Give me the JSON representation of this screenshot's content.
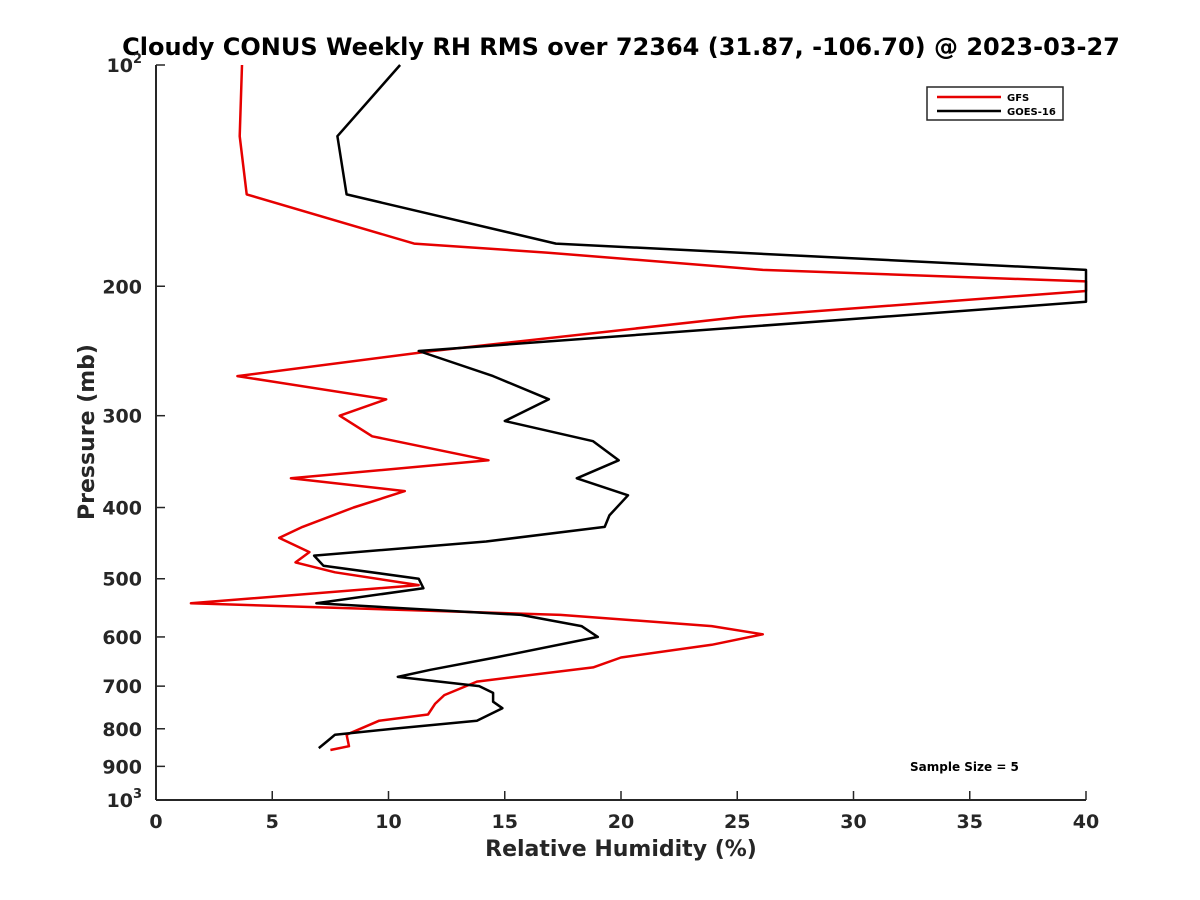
{
  "chart_data": {
    "type": "line",
    "title": "Cloudy CONUS Weekly RH RMS over 72364 (31.87, -106.70) @ 2023-03-27",
    "xlabel": "Relative Humidity (%)",
    "ylabel": "Pressure (mb)",
    "xlim": [
      0,
      40
    ],
    "ylim": [
      100,
      1000
    ],
    "y_scale": "log",
    "y_reversed": true,
    "x_ticks": [
      "0",
      "5",
      "10",
      "15",
      "20",
      "25",
      "30",
      "35",
      "40"
    ],
    "y_ticks": [
      {
        "value": 100,
        "base": "10",
        "exp": "2"
      },
      {
        "value": 200,
        "label": "200"
      },
      {
        "value": 300,
        "label": "300"
      },
      {
        "value": 400,
        "label": "400"
      },
      {
        "value": 500,
        "label": "500"
      },
      {
        "value": 600,
        "label": "600"
      },
      {
        "value": 700,
        "label": "700"
      },
      {
        "value": 800,
        "label": "800"
      },
      {
        "value": 900,
        "label": "900"
      },
      {
        "value": 1000,
        "base": "10",
        "exp": "3"
      }
    ],
    "legend_position": "top-right",
    "annotation": "Sample Size = 5",
    "grid": false,
    "series": [
      {
        "name": "GFS",
        "color": "#e60000",
        "points": [
          [
            3.7,
            100
          ],
          [
            3.6,
            125
          ],
          [
            3.9,
            150
          ],
          [
            11.1,
            175
          ],
          [
            16.8,
            180
          ],
          [
            26.1,
            190
          ],
          [
            40.0,
            197
          ],
          [
            40.0,
            203
          ],
          [
            25.2,
            220
          ],
          [
            11.9,
            245
          ],
          [
            3.5,
            265
          ],
          [
            9.9,
            285
          ],
          [
            7.9,
            300
          ],
          [
            9.3,
            320
          ],
          [
            14.3,
            345
          ],
          [
            5.8,
            365
          ],
          [
            10.7,
            380
          ],
          [
            8.5,
            400
          ],
          [
            6.3,
            425
          ],
          [
            5.3,
            440
          ],
          [
            6.6,
            460
          ],
          [
            6.0,
            475
          ],
          [
            7.7,
            490
          ],
          [
            11.3,
            510
          ],
          [
            1.5,
            540
          ],
          [
            17.4,
            560
          ],
          [
            23.9,
            580
          ],
          [
            26.1,
            595
          ],
          [
            23.9,
            615
          ],
          [
            20.0,
            640
          ],
          [
            18.8,
            660
          ],
          [
            13.8,
            690
          ],
          [
            12.4,
            720
          ],
          [
            12.0,
            740
          ],
          [
            11.7,
            765
          ],
          [
            9.6,
            780
          ],
          [
            8.2,
            815
          ],
          [
            8.3,
            845
          ],
          [
            7.5,
            855
          ]
        ]
      },
      {
        "name": "GOES-16",
        "color": "#000000",
        "points": [
          [
            10.5,
            100
          ],
          [
            7.8,
            125
          ],
          [
            8.2,
            150
          ],
          [
            17.2,
            175
          ],
          [
            40.0,
            190
          ],
          [
            40.0,
            202
          ],
          [
            40.0,
            210
          ],
          [
            11.3,
            245
          ],
          [
            14.5,
            265
          ],
          [
            16.9,
            285
          ],
          [
            15.0,
            305
          ],
          [
            18.8,
            325
          ],
          [
            19.9,
            345
          ],
          [
            18.1,
            365
          ],
          [
            20.3,
            385
          ],
          [
            19.5,
            410
          ],
          [
            19.3,
            425
          ],
          [
            14.2,
            445
          ],
          [
            6.8,
            465
          ],
          [
            7.2,
            480
          ],
          [
            11.3,
            500
          ],
          [
            11.5,
            515
          ],
          [
            6.9,
            540
          ],
          [
            15.7,
            560
          ],
          [
            18.3,
            580
          ],
          [
            19.0,
            600
          ],
          [
            14.6,
            640
          ],
          [
            11.8,
            665
          ],
          [
            10.4,
            680
          ],
          [
            13.9,
            700
          ],
          [
            14.5,
            715
          ],
          [
            14.5,
            735
          ],
          [
            14.9,
            750
          ],
          [
            13.8,
            780
          ],
          [
            10.2,
            800
          ],
          [
            7.7,
            815
          ],
          [
            7.4,
            830
          ],
          [
            7.0,
            850
          ]
        ]
      }
    ]
  }
}
